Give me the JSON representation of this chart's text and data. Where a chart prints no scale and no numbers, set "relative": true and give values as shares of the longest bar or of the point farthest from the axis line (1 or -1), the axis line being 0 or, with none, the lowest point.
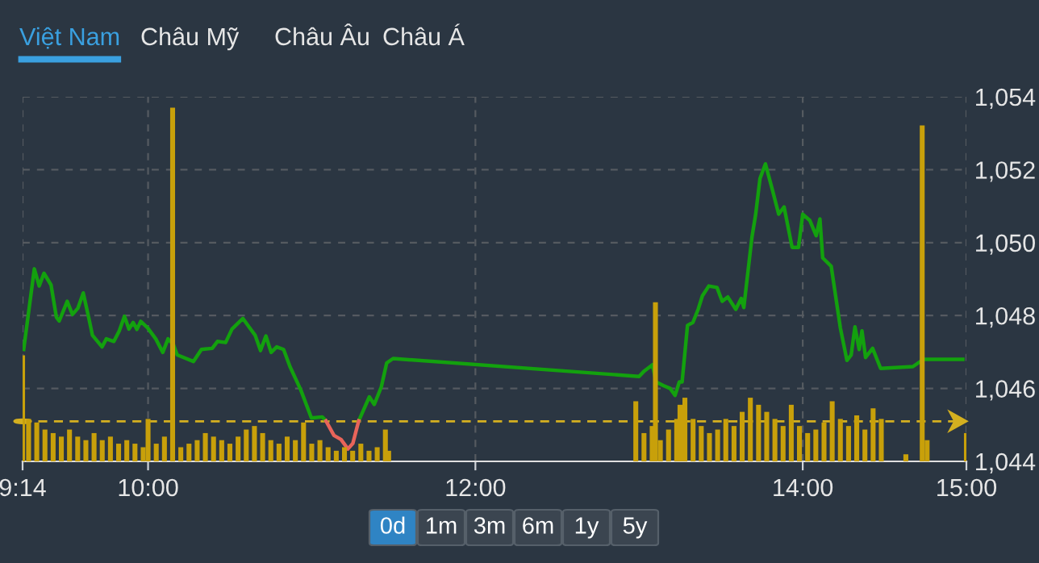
{
  "chart_data": [
    {
      "type": "line",
      "annotations": [
        "Việt Nam",
        "Châu Mỹ",
        "Châu Âu",
        "Châu Á",
        "0d",
        "1m",
        "3m",
        "6m",
        "1y",
        "5y"
      ],
      "xlim": [
        9.2333,
        15
      ],
      "xticks": [
        {
          "value": 9.2333,
          "label": "9:14"
        },
        {
          "value": 10,
          "label": "10:00"
        },
        {
          "value": 12,
          "label": "12:00"
        },
        {
          "value": 14,
          "label": "14:00"
        },
        {
          "value": 15,
          "label": "15:00"
        }
      ],
      "ylim": [
        1044,
        1054
      ],
      "yticks": [
        {
          "value": 1044,
          "label": "1,044"
        },
        {
          "value": 1046,
          "label": "1,046"
        },
        {
          "value": 1048,
          "label": "1,048"
        },
        {
          "value": 1050,
          "label": "1,050"
        },
        {
          "value": 1052,
          "label": "1,052"
        },
        {
          "value": 1054,
          "label": "1,054"
        }
      ],
      "grid": true,
      "legend": false,
      "marker": "none",
      "line_style": "solid",
      "ref_lines": [
        {
          "axis": "y",
          "value": 1045.1,
          "color": "#d4b020",
          "line_style": "dashed"
        }
      ],
      "series": [
        {
          "color": "#13a10e",
          "x": [
            9.24,
            9.305,
            9.335,
            9.364,
            9.407,
            9.44,
            9.457,
            9.506,
            9.538,
            9.571,
            9.604,
            9.637,
            9.66,
            9.719,
            9.745,
            9.791,
            9.824,
            9.856,
            9.883,
            9.909,
            9.932,
            9.955,
            9.998,
            10.047,
            10.09,
            10.122,
            10.156,
            10.178,
            10.277,
            10.326,
            10.392,
            10.424,
            10.474,
            10.513,
            10.579,
            10.621,
            10.654,
            10.687,
            10.72,
            10.752,
            10.786,
            10.828,
            10.867,
            10.933,
            10.998,
            11.064,
            11.087,
            11.2,
            11.287,
            11.352,
            11.382,
            11.425,
            11.458,
            11.497,
            13.0,
            13.032,
            13.082,
            13.104,
            13.148,
            13.19,
            13.22,
            13.246,
            13.263,
            13.296,
            13.329,
            13.361,
            13.387,
            13.426,
            13.476,
            13.508,
            13.542,
            13.591,
            13.624,
            13.64,
            13.69,
            13.712,
            13.739,
            13.772,
            13.814,
            13.853,
            13.886,
            13.935,
            13.974,
            14.0,
            14.043,
            14.082,
            14.105,
            14.122,
            14.174,
            14.23,
            14.27,
            14.296,
            14.319,
            14.345,
            14.362,
            14.384,
            14.427,
            14.476,
            14.673,
            14.739,
            14.978
          ],
          "values": [
            1047.07,
            1049.28,
            1048.81,
            1049.16,
            1048.84,
            1047.95,
            1047.85,
            1048.39,
            1048.03,
            1048.2,
            1048.62,
            1047.95,
            1047.46,
            1047.14,
            1047.36,
            1047.29,
            1047.58,
            1047.98,
            1047.63,
            1047.81,
            1047.62,
            1047.84,
            1047.66,
            1047.36,
            1046.99,
            1047.36,
            1047.19,
            1046.92,
            1046.74,
            1047.07,
            1047.1,
            1047.29,
            1047.26,
            1047.63,
            1047.92,
            1047.66,
            1047.46,
            1047.04,
            1047.44,
            1046.99,
            1047.14,
            1047.07,
            1046.6,
            1045.96,
            1045.19,
            1045.22,
            1045.11,
            null,
            1045.11,
            1045.77,
            1045.56,
            1046.04,
            1046.7,
            1046.82,
            1046.33,
            1046.48,
            1046.65,
            1046.18,
            1046.08,
            1046.0,
            1045.81,
            1046.18,
            1046.18,
            1047.73,
            1047.81,
            1048.17,
            1048.54,
            1048.81,
            1048.77,
            1048.39,
            1048.51,
            1048.17,
            1048.47,
            1048.22,
            1050.16,
            1050.76,
            1051.76,
            1052.16,
            1051.46,
            1050.78,
            1050.98,
            1049.87,
            1049.87,
            1050.78,
            1050.61,
            1050.19,
            1050.65,
            1049.58,
            1049.35,
            1047.66,
            1046.77,
            1046.92,
            1047.69,
            1047.07,
            1047.58,
            1046.85,
            1047.1,
            1046.55,
            1046.6,
            1046.8,
            1046.8
          ]
        },
        {
          "color": "#e8645a",
          "x": [
            11.087,
            11.136,
            11.179,
            11.221,
            11.251,
            11.287
          ],
          "values": [
            1045.11,
            1044.71,
            1044.6,
            1044.34,
            1044.49,
            1045.11
          ]
        }
      ]
    },
    {
      "type": "bar",
      "relative": true,
      "tick_labels": false,
      "xlim": [
        9.2333,
        15
      ],
      "color": "#c8a00a",
      "x": [
        9.2333,
        9.27,
        9.32,
        9.37,
        9.42,
        9.47,
        9.52,
        9.57,
        9.62,
        9.67,
        9.72,
        9.77,
        9.82,
        9.87,
        9.92,
        9.97,
        10.0,
        10.05,
        10.1,
        10.15,
        10.2,
        10.25,
        10.3,
        10.35,
        10.4,
        10.45,
        10.5,
        10.55,
        10.6,
        10.65,
        10.7,
        10.75,
        10.8,
        10.85,
        10.9,
        10.95,
        11.0,
        11.05,
        11.1,
        11.15,
        11.2,
        11.25,
        11.3,
        11.35,
        11.4,
        11.45,
        11.47,
        12.98,
        13.03,
        13.08,
        13.1,
        13.13,
        13.18,
        13.23,
        13.25,
        13.28,
        13.33,
        13.38,
        13.43,
        13.48,
        13.53,
        13.58,
        13.63,
        13.68,
        13.73,
        13.78,
        13.83,
        13.88,
        13.93,
        13.98,
        14.03,
        14.08,
        14.13,
        14.18,
        14.23,
        14.28,
        14.33,
        14.38,
        14.43,
        14.48,
        14.63,
        14.73,
        14.76,
        15.0
      ],
      "values": [
        0.3,
        0.12,
        0.11,
        0.09,
        0.08,
        0.07,
        0.09,
        0.07,
        0.06,
        0.08,
        0.06,
        0.07,
        0.05,
        0.06,
        0.05,
        0.04,
        0.12,
        0.05,
        0.07,
        1.0,
        0.04,
        0.05,
        0.06,
        0.08,
        0.07,
        0.06,
        0.05,
        0.07,
        0.09,
        0.1,
        0.08,
        0.06,
        0.05,
        0.07,
        0.06,
        0.11,
        0.05,
        0.06,
        0.04,
        0.03,
        0.04,
        0.03,
        0.05,
        0.03,
        0.04,
        0.09,
        0.03,
        0.17,
        0.08,
        0.1,
        0.45,
        0.06,
        0.09,
        0.12,
        0.16,
        0.18,
        0.12,
        0.1,
        0.08,
        0.09,
        0.12,
        0.1,
        0.14,
        0.18,
        0.16,
        0.14,
        0.12,
        0.1,
        0.16,
        0.1,
        0.08,
        0.09,
        0.11,
        0.17,
        0.12,
        0.1,
        0.13,
        0.09,
        0.15,
        0.12,
        0.02,
        0.95,
        0.06,
        0.08
      ]
    }
  ]
}
